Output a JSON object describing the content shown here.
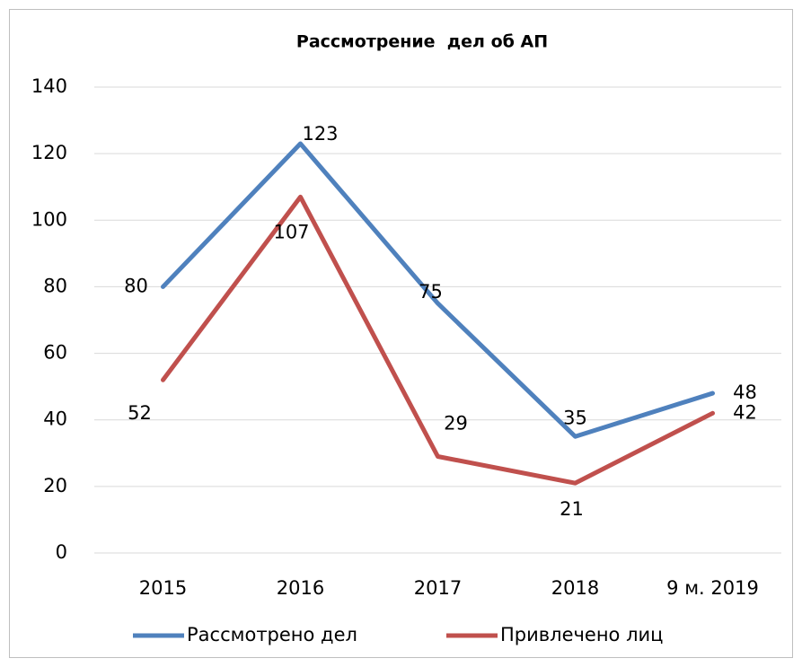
{
  "chart_data": {
    "type": "line",
    "title": "Рассмотрение  дел об АП",
    "categories": [
      "2015",
      "2016",
      "2017",
      "2018",
      "9 м. 2019"
    ],
    "series": [
      {
        "name": "Рассмотрено дел",
        "color": "#4f81bd",
        "values": [
          80,
          123,
          75,
          35,
          48
        ]
      },
      {
        "name": "Привлечено лиц",
        "color": "#c0504d",
        "values": [
          52,
          107,
          29,
          21,
          42
        ]
      }
    ],
    "ylim": [
      0,
      140
    ],
    "yticks": [
      0,
      20,
      40,
      60,
      80,
      100,
      120,
      140
    ],
    "grid": true,
    "legend": "bottom"
  }
}
